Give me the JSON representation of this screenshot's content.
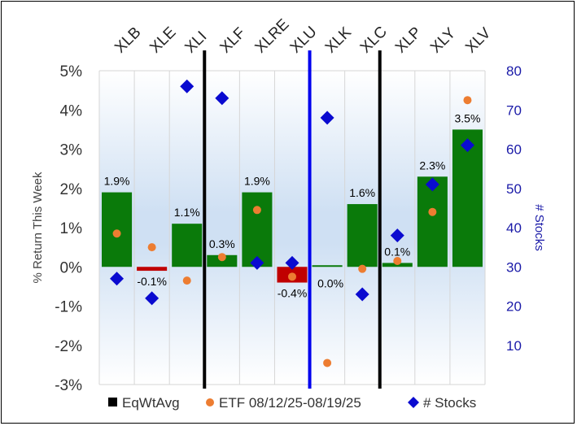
{
  "chart_data": {
    "type": "bar",
    "categories": [
      "XLB",
      "XLE",
      "XLI",
      "XLF",
      "XLRE",
      "XLU",
      "XLK",
      "XLC",
      "XLP",
      "XLY",
      "XLV"
    ],
    "series": [
      {
        "name": "EqWtAvg",
        "kind": "bar",
        "axis": "left",
        "values": [
          1.9,
          -0.1,
          1.1,
          0.3,
          1.9,
          -0.4,
          0.0,
          1.6,
          0.1,
          2.3,
          3.5
        ],
        "labels": [
          "1.9%",
          "-0.1%",
          "1.1%",
          "0.3%",
          "1.9%",
          "-0.4%",
          "0.0%",
          "1.6%",
          "0.1%",
          "2.3%",
          "3.5%"
        ]
      },
      {
        "name": "ETF 08/12/25-08/19/25",
        "kind": "scatter",
        "axis": "left",
        "values": [
          0.85,
          0.5,
          -0.35,
          0.25,
          1.45,
          -0.25,
          -2.45,
          -0.05,
          0.15,
          1.4,
          4.25
        ]
      },
      {
        "name": "# Stocks",
        "kind": "scatter",
        "axis": "right",
        "values": [
          27,
          22,
          76,
          73,
          31,
          31,
          68,
          23,
          38,
          51,
          61
        ]
      }
    ],
    "ylabel": "% Return This Week",
    "y2label": "# Stocks",
    "ylim": [
      -3,
      5
    ],
    "y2lim": [
      0,
      80
    ],
    "yticks": [
      "-3%",
      "-2%",
      "-1%",
      "0%",
      "1%",
      "2%",
      "3%",
      "4%",
      "5%"
    ],
    "y2ticks": [
      "",
      "10",
      "20",
      "30",
      "40",
      "50",
      "60",
      "70",
      "80"
    ],
    "dividers_after": [
      {
        "after": 2,
        "color": "#000000"
      },
      {
        "after": 5,
        "color": "#0000ee"
      },
      {
        "after": 7,
        "color": "#000000"
      }
    ],
    "colors": {
      "positive_bar": "#0a7a0a",
      "negative_bar": "#c00000",
      "etf_marker": "#ed7d31",
      "stocks_marker": "#0a0ad0",
      "legend_eqwt": "#000000"
    }
  }
}
